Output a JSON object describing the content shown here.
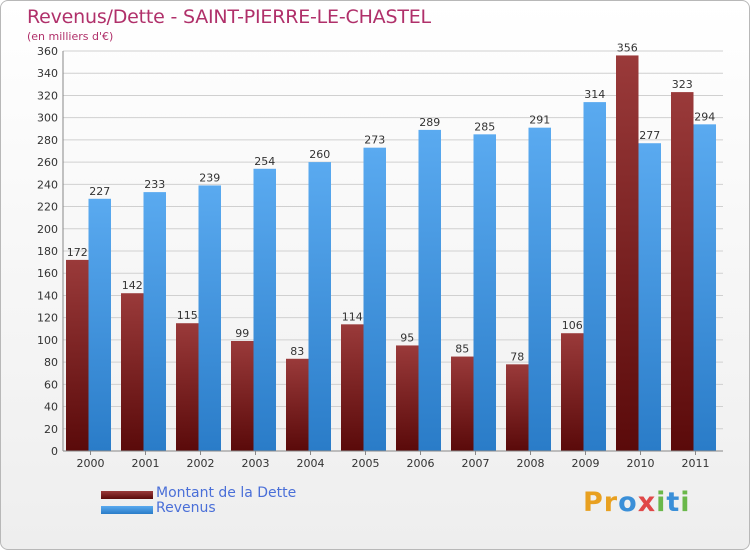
{
  "header": {
    "title": "Revenus/Dette - SAINT-PIERRE-LE-CHASTEL",
    "subtitle": "(en milliers d'€)"
  },
  "legend": {
    "debt_label": "Montant de la Dette",
    "revenue_label": "Revenus"
  },
  "logo": {
    "letters": [
      "P",
      "r",
      "o",
      "x",
      "i",
      "t",
      "i"
    ],
    "colors": [
      "#e8a020",
      "#e8a020",
      "#3a8fd8",
      "#e04848",
      "#6ab84a",
      "#3a8fd8",
      "#6ab84a"
    ]
  },
  "colors": {
    "debt_dark": "#5a0a0a",
    "debt_light": "#9a3a3a",
    "revenue_dark": "#2a7cc8",
    "revenue_light": "#5aaaf0",
    "grid": "#d0d0d0",
    "text": "#333333"
  },
  "chart_data": {
    "type": "bar",
    "title": "Revenus/Dette - SAINT-PIERRE-LE-CHASTEL",
    "subtitle": "(en milliers d'€)",
    "categories": [
      "2000",
      "2001",
      "2002",
      "2003",
      "2004",
      "2005",
      "2006",
      "2007",
      "2008",
      "2009",
      "2010",
      "2011"
    ],
    "series": [
      {
        "name": "Montant de la Dette",
        "values": [
          172,
          142,
          115,
          99,
          83,
          114,
          95,
          85,
          78,
          106,
          356,
          323
        ]
      },
      {
        "name": "Revenus",
        "values": [
          227,
          233,
          239,
          254,
          260,
          273,
          289,
          285,
          291,
          314,
          277,
          294
        ]
      }
    ],
    "ylim": [
      0,
      360
    ],
    "ytick_step": 20,
    "grid": true,
    "legend_position": "bottom-left"
  }
}
